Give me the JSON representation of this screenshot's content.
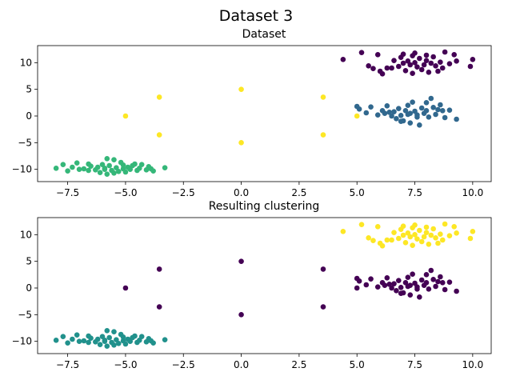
{
  "figure": {
    "suptitle": "Dataset 3"
  },
  "palette": {
    "viridis_4": [
      "#440154",
      "#31688e",
      "#35b779",
      "#fde725"
    ],
    "viridis_3": [
      "#440154",
      "#21918c",
      "#fde725"
    ]
  },
  "chart_data": [
    {
      "type": "scatter",
      "title": "Dataset",
      "xlim": [
        -8.8,
        10.8
      ],
      "ylim": [
        -12.3,
        13.2
      ],
      "xticks": [
        -7.5,
        -5.0,
        -2.5,
        0.0,
        2.5,
        5.0,
        7.5,
        10.0
      ],
      "xtick_labels": [
        "−7.5",
        "−5.0",
        "−2.5",
        "0.0",
        "2.5",
        "5.0",
        "7.5",
        "10.0"
      ],
      "yticks": [
        10,
        5,
        0,
        -5,
        -10
      ],
      "ytick_labels": [
        "10",
        "5",
        "0",
        "−5",
        "−10"
      ],
      "grid": false,
      "series": [
        {
          "color_index": 0,
          "points": [
            [
              4.4,
              10.6
            ],
            [
              5.2,
              11.9
            ],
            [
              5.5,
              9.4
            ],
            [
              5.7,
              8.9
            ],
            [
              5.9,
              11.5
            ],
            [
              6.0,
              8.4
            ],
            [
              6.1,
              7.9
            ],
            [
              6.5,
              9.0
            ],
            [
              6.8,
              9.3
            ],
            [
              6.9,
              11.0
            ],
            [
              7.0,
              9.9
            ],
            [
              7.1,
              8.5
            ],
            [
              7.2,
              10.3
            ],
            [
              7.3,
              9.6
            ],
            [
              7.4,
              8.0
            ],
            [
              7.4,
              11.3
            ],
            [
              7.5,
              10.0
            ],
            [
              7.6,
              9.2
            ],
            [
              7.7,
              10.8
            ],
            [
              7.8,
              8.7
            ],
            [
              7.9,
              9.6
            ],
            [
              8.0,
              10.4
            ],
            [
              8.1,
              8.2
            ],
            [
              8.2,
              9.9
            ],
            [
              8.3,
              11.1
            ],
            [
              8.4,
              9.4
            ],
            [
              8.6,
              10.1
            ],
            [
              8.7,
              9.0
            ],
            [
              8.8,
              12.0
            ],
            [
              9.0,
              9.8
            ],
            [
              9.2,
              11.5
            ],
            [
              9.3,
              10.3
            ],
            [
              9.9,
              9.3
            ],
            [
              10.0,
              10.6
            ],
            [
              8.5,
              8.4
            ],
            [
              7.0,
              11.6
            ],
            [
              6.6,
              10.4
            ],
            [
              6.3,
              9.0
            ],
            [
              7.5,
              11.8
            ],
            [
              8.0,
              11.4
            ]
          ]
        },
        {
          "color_index": 1,
          "points": [
            [
              5.0,
              1.8
            ],
            [
              5.1,
              1.3
            ],
            [
              5.4,
              0.6
            ],
            [
              5.6,
              1.7
            ],
            [
              5.9,
              0.2
            ],
            [
              6.1,
              1.0
            ],
            [
              6.2,
              0.5
            ],
            [
              6.3,
              1.9
            ],
            [
              6.5,
              0.0
            ],
            [
              6.6,
              0.8
            ],
            [
              6.7,
              -0.5
            ],
            [
              6.8,
              1.4
            ],
            [
              6.9,
              0.1
            ],
            [
              7.0,
              -0.9
            ],
            [
              7.1,
              1.0
            ],
            [
              7.2,
              0.3
            ],
            [
              7.3,
              -1.3
            ],
            [
              7.4,
              2.6
            ],
            [
              7.5,
              0.9
            ],
            [
              7.6,
              -0.2
            ],
            [
              7.7,
              -1.7
            ],
            [
              7.8,
              1.5
            ],
            [
              7.9,
              0.5
            ],
            [
              8.0,
              1.0
            ],
            [
              8.1,
              -0.2
            ],
            [
              8.2,
              3.3
            ],
            [
              8.3,
              1.6
            ],
            [
              8.4,
              0.3
            ],
            [
              8.5,
              1.2
            ],
            [
              8.7,
              1.0
            ],
            [
              8.8,
              -0.3
            ],
            [
              9.0,
              1.1
            ],
            [
              9.3,
              -0.6
            ],
            [
              7.2,
              2.0
            ],
            [
              6.4,
              0.7
            ],
            [
              7.6,
              0.2
            ],
            [
              8.6,
              2.1
            ],
            [
              6.9,
              -1.0
            ],
            [
              7.3,
              0.5
            ],
            [
              8.0,
              2.5
            ]
          ]
        },
        {
          "color_index": 2,
          "points": [
            [
              -8.0,
              -9.8
            ],
            [
              -7.7,
              -9.1
            ],
            [
              -7.5,
              -10.3
            ],
            [
              -7.3,
              -9.6
            ],
            [
              -7.1,
              -8.8
            ],
            [
              -7.0,
              -10.0
            ],
            [
              -6.8,
              -9.9
            ],
            [
              -6.6,
              -10.2
            ],
            [
              -6.5,
              -9.4
            ],
            [
              -6.3,
              -10.1
            ],
            [
              -6.2,
              -9.6
            ],
            [
              -6.1,
              -10.6
            ],
            [
              -6.0,
              -9.1
            ],
            [
              -5.9,
              -9.8
            ],
            [
              -5.8,
              -10.9
            ],
            [
              -5.7,
              -9.3
            ],
            [
              -5.6,
              -10.2
            ],
            [
              -5.5,
              -8.2
            ],
            [
              -5.4,
              -9.7
            ],
            [
              -5.3,
              -10.4
            ],
            [
              -5.2,
              -8.7
            ],
            [
              -5.1,
              -9.9
            ],
            [
              -5.0,
              -10.5
            ],
            [
              -4.9,
              -9.6
            ],
            [
              -4.8,
              -10.0
            ],
            [
              -4.7,
              -9.3
            ],
            [
              -4.5,
              -10.2
            ],
            [
              -4.4,
              -9.8
            ],
            [
              -4.3,
              -9.1
            ],
            [
              -4.1,
              -10.1
            ],
            [
              -4.0,
              -9.5
            ],
            [
              -3.9,
              -9.9
            ],
            [
              -3.8,
              -10.3
            ],
            [
              -3.3,
              -9.7
            ],
            [
              -5.8,
              -8.0
            ],
            [
              -5.5,
              -10.7
            ],
            [
              -6.6,
              -9.0
            ],
            [
              -4.6,
              -9.0
            ],
            [
              -5.1,
              -9.2
            ],
            [
              -5.9,
              -10.0
            ]
          ]
        },
        {
          "color_index": 3,
          "points": [
            [
              -5.0,
              0.0
            ],
            [
              -3.54,
              3.54
            ],
            [
              -3.54,
              -3.54
            ],
            [
              0.0,
              5.0
            ],
            [
              0.0,
              -5.0
            ],
            [
              3.54,
              3.54
            ],
            [
              3.54,
              -3.54
            ],
            [
              5.0,
              0.0
            ]
          ]
        }
      ]
    },
    {
      "type": "scatter",
      "title": "Resulting clustering",
      "xlim": [
        -8.8,
        10.8
      ],
      "ylim": [
        -12.3,
        13.2
      ],
      "xticks": [
        -7.5,
        -5.0,
        -2.5,
        0.0,
        2.5,
        5.0,
        7.5,
        10.0
      ],
      "xtick_labels": [
        "−7.5",
        "−5.0",
        "−2.5",
        "0.0",
        "2.5",
        "5.0",
        "7.5",
        "10.0"
      ],
      "yticks": [
        10,
        5,
        0,
        -5,
        -10
      ],
      "ytick_labels": [
        "10",
        "5",
        "0",
        "−5",
        "−10"
      ],
      "grid": false,
      "series": [
        {
          "color_index": 2,
          "source_series": 0
        },
        {
          "color_index": 0,
          "source_series": 1
        },
        {
          "color_index": 1,
          "source_series": 2
        },
        {
          "color_index": 0,
          "source_series": 3
        }
      ]
    }
  ]
}
